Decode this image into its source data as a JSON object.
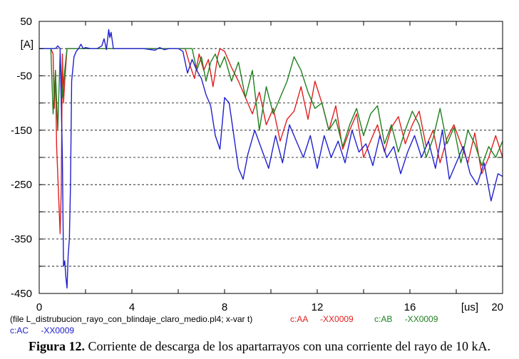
{
  "chart_data": {
    "type": "line",
    "y_unit_label": "[A]",
    "x_unit_label": "[us]",
    "xlim": [
      0,
      20
    ],
    "ylim": [
      -450,
      50
    ],
    "x_ticks": [
      0,
      4,
      8,
      12,
      16,
      20
    ],
    "x_tick_labels": [
      "0",
      "4",
      "8",
      "12",
      "16",
      "20"
    ],
    "x_minor_ticks": [
      2,
      6,
      10,
      14,
      18
    ],
    "y_ticks": [
      50,
      -50,
      -150,
      -250,
      -350,
      -450
    ],
    "y_tick_labels": [
      "50",
      "-50",
      "-150",
      "-250",
      "-350",
      "-450"
    ],
    "y_minor_ticks": [
      0,
      -100,
      -200,
      -300,
      -400
    ],
    "grid": "dashed horizontal at every 50 A; short ticks on both axes",
    "series": [
      {
        "name": "c:AA -XX0009",
        "color": "#e02020",
        "x": [
          0,
          0.5,
          0.6,
          0.65,
          0.7,
          0.75,
          0.8,
          0.9,
          0.95,
          1.0,
          1.05,
          1.1,
          1.2,
          6.3,
          6.5,
          6.7,
          6.9,
          7.1,
          7.3,
          7.5,
          7.7,
          7.8,
          8.0,
          8.3,
          8.6,
          8.9,
          9.2,
          9.5,
          9.8,
          10.1,
          10.4,
          10.7,
          11.0,
          11.3,
          11.6,
          11.9,
          12.2,
          12.5,
          12.8,
          13.1,
          13.4,
          13.7,
          14.0,
          14.3,
          14.6,
          14.9,
          15.2,
          15.5,
          15.8,
          16.1,
          16.4,
          16.7,
          17.0,
          17.3,
          17.6,
          17.9,
          18.2,
          18.5,
          18.8,
          19.1,
          19.4,
          19.7,
          20.0
        ],
        "y": [
          0,
          0,
          -10,
          -110,
          -40,
          -180,
          -230,
          -340,
          -260,
          -10,
          -100,
          -60,
          0,
          0,
          -30,
          -55,
          -10,
          -40,
          -20,
          -70,
          -15,
          0,
          -5,
          -35,
          -60,
          -90,
          -120,
          -80,
          -140,
          -110,
          -170,
          -130,
          -115,
          -70,
          -130,
          -60,
          -100,
          -150,
          -105,
          -185,
          -150,
          -120,
          -200,
          -170,
          -140,
          -190,
          -145,
          -125,
          -175,
          -140,
          -115,
          -180,
          -150,
          -210,
          -165,
          -140,
          -175,
          -210,
          -155,
          -230,
          -200,
          -160,
          -200
        ]
      },
      {
        "name": "c:AB -XX0009",
        "color": "#208020",
        "x": [
          0,
          0.5,
          0.6,
          0.7,
          0.8,
          0.9,
          1.0,
          1.1,
          1.2,
          6.6,
          6.8,
          7.0,
          7.2,
          7.4,
          7.6,
          7.8,
          8.0,
          8.3,
          8.6,
          8.9,
          9.2,
          9.5,
          9.8,
          10.1,
          10.4,
          10.7,
          11.0,
          11.3,
          11.6,
          11.9,
          12.2,
          12.5,
          12.8,
          13.1,
          13.4,
          13.7,
          14.0,
          14.3,
          14.6,
          14.9,
          15.2,
          15.5,
          15.8,
          16.1,
          16.4,
          16.7,
          17.0,
          17.3,
          17.6,
          17.9,
          18.2,
          18.5,
          18.8,
          19.1,
          19.4,
          19.7,
          20.0
        ],
        "y": [
          0,
          0,
          -120,
          -40,
          -150,
          -10,
          -90,
          -40,
          0,
          0,
          -40,
          -15,
          -60,
          -25,
          -10,
          -35,
          -15,
          -60,
          -25,
          -90,
          -40,
          -150,
          -70,
          -120,
          -90,
          -60,
          -15,
          -40,
          -80,
          -110,
          -100,
          -150,
          -130,
          -180,
          -140,
          -110,
          -160,
          -120,
          -105,
          -175,
          -140,
          -190,
          -150,
          -115,
          -140,
          -200,
          -165,
          -110,
          -175,
          -145,
          -210,
          -150,
          -175,
          -215,
          -180,
          -200,
          -170
        ]
      },
      {
        "name": "c:AC -XX0009",
        "color": "#2020d0",
        "x": [
          0,
          0.7,
          0.8,
          0.9,
          1.0,
          1.05,
          1.1,
          1.15,
          1.2,
          1.25,
          1.3,
          1.35,
          1.4,
          1.5,
          1.6,
          1.7,
          1.8,
          1.9,
          2.0,
          2.2,
          2.5,
          2.7,
          2.8,
          2.9,
          3.0,
          3.05,
          3.1,
          3.2,
          3.5,
          4.5,
          5.0,
          5.2,
          5.4,
          5.6,
          6.0,
          6.2,
          6.4,
          6.6,
          6.8,
          7.0,
          7.2,
          7.4,
          7.6,
          7.8,
          8.0,
          8.2,
          8.4,
          8.6,
          8.8,
          9.0,
          9.3,
          9.6,
          9.9,
          10.2,
          10.5,
          10.8,
          11.1,
          11.4,
          11.7,
          12.0,
          12.3,
          12.6,
          12.9,
          13.2,
          13.5,
          13.8,
          14.1,
          14.4,
          14.7,
          15.0,
          15.3,
          15.6,
          15.9,
          16.2,
          16.5,
          16.8,
          17.1,
          17.4,
          17.7,
          18.0,
          18.3,
          18.6,
          18.9,
          19.2,
          19.5,
          19.8,
          20.0
        ],
        "y": [
          0,
          0,
          5,
          0,
          -200,
          -400,
          -390,
          -420,
          -440,
          -380,
          -350,
          -250,
          -60,
          -15,
          -5,
          0,
          8,
          0,
          2,
          0,
          0,
          5,
          18,
          -2,
          35,
          20,
          30,
          0,
          0,
          0,
          -3,
          2,
          -2,
          0,
          0,
          -5,
          -45,
          -20,
          -40,
          -55,
          -85,
          -105,
          -160,
          -185,
          -90,
          -100,
          -160,
          -220,
          -240,
          -195,
          -150,
          -185,
          -220,
          -160,
          -210,
          -140,
          -170,
          -200,
          -160,
          -220,
          -160,
          -200,
          -170,
          -210,
          -150,
          -190,
          -175,
          -215,
          -160,
          -200,
          -180,
          -230,
          -190,
          -160,
          -200,
          -170,
          -220,
          -150,
          -240,
          -210,
          -180,
          -230,
          -250,
          -210,
          -280,
          -230,
          -235
        ]
      }
    ]
  },
  "legend": {
    "file_line": "(file L_distrubucion_rayo_con_blindaje_claro_medio.pl4; x-var t)",
    "entries": [
      {
        "label": "c:AA",
        "id": "-XX0009",
        "color": "#e02020"
      },
      {
        "label": "c:AB",
        "id": "-XX0009",
        "color": "#208020"
      },
      {
        "label": "c:AC",
        "id": "-XX0009",
        "color": "#2020d0"
      }
    ]
  },
  "caption": {
    "label": "Figura 12.",
    "text": "Corriente de descarga de los apartarrayos con una corriente del rayo de 10 kA."
  }
}
